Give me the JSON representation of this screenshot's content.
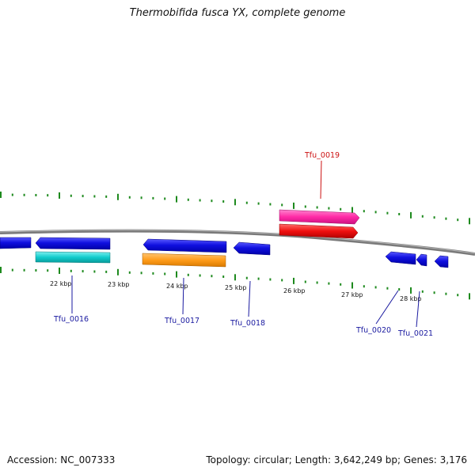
{
  "title": "Thermobifida fusca YX, complete genome",
  "footer": {
    "accession": "Accession: NC_007333",
    "summary": "Topology: circular; Length: 3,642,249 bp; Genes: 3,176"
  },
  "colors": {
    "backbone": "#7a7a7a",
    "ticks": "#1e8a1e",
    "gene_blue": "#1010e0",
    "gene_cyan": "#11cccc",
    "gene_orange": "#ff9c1a",
    "gene_pink": "#ff2aa6",
    "gene_red": "#f01010",
    "label_blue": "#1a1aa0",
    "label_red": "#cc1111"
  },
  "scale": {
    "labels": [
      "22 kbp",
      "23 kbp",
      "24 kbp",
      "25 kbp",
      "26 kbp",
      "27 kbp",
      "28 kbp"
    ]
  },
  "genes": {
    "labels": [
      "Tfu_0016",
      "Tfu_0017",
      "Tfu_0018",
      "Tfu_0019",
      "Tfu_0020",
      "Tfu_0021"
    ]
  }
}
